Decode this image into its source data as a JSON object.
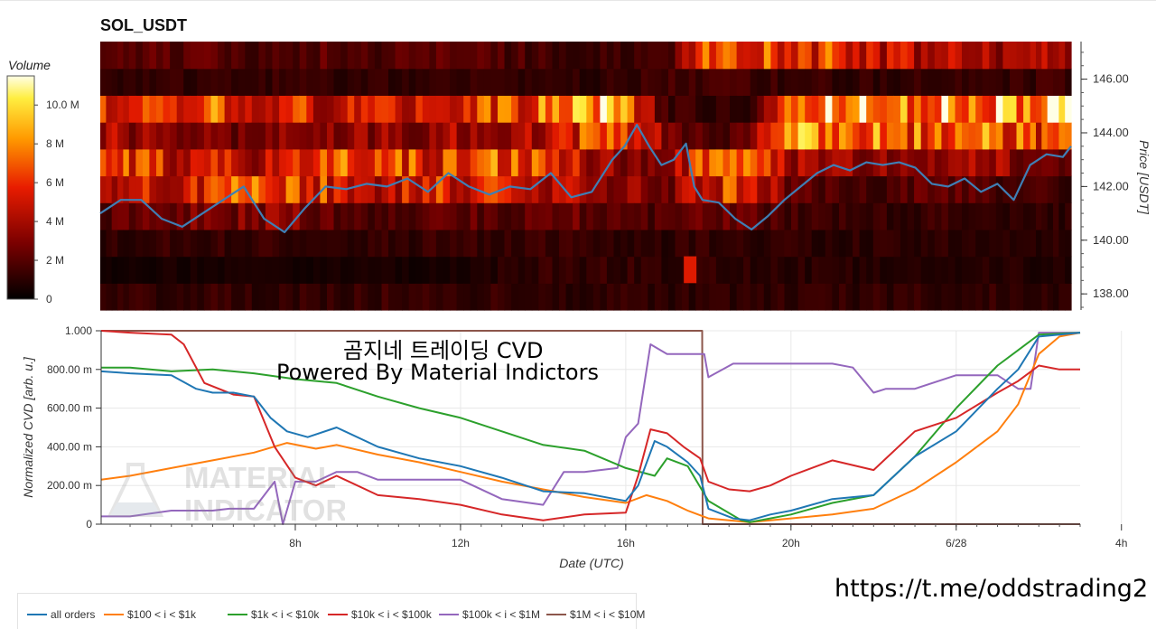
{
  "header": {
    "title": "SOL_USDT"
  },
  "colorbar": {
    "title": "Volume",
    "ticks": [
      "0",
      "2 M",
      "4 M",
      "6 M",
      "8 M",
      "10.0 M"
    ],
    "tick_values": [
      0,
      2,
      4,
      6,
      8,
      10
    ],
    "max": 11.5
  },
  "watermark": {
    "line1": "곰지네 트레이딩 CVD",
    "line2": "Powered By Material Indictors",
    "logo_line1": "MATERIAL",
    "logo_line2": "INDICATORS"
  },
  "footer": {
    "url": "https://t.me/oddstrading2"
  },
  "colors": {
    "all": "#1f77b4",
    "s100": "#ff7f0e",
    "s1k": "#2ca02c",
    "s10k": "#d62728",
    "s100k": "#9467bd",
    "s1m": "#8c564b",
    "price": "#3f7fb5"
  },
  "chart_data": [
    {
      "type": "heatmap",
      "title": "SOL_USDT",
      "ylabel": "Price [USDT]",
      "ylim": [
        137.4,
        147.4
      ],
      "yticks": [
        "138.00",
        "140.00",
        "142.00",
        "144.00",
        "146.00"
      ],
      "ytick_values": [
        138,
        140,
        142,
        144,
        146
      ],
      "x_range_hours": [
        3.3,
        27.0
      ],
      "price_bands_low": [
        137.4,
        138.4,
        139.4,
        140.4,
        141.4,
        142.4,
        143.4,
        144.4,
        145.4,
        146.4
      ],
      "volume_columns_M": [
        {
          "x": 3.3,
          "levels": [
            1.3,
            0.4,
            1.0,
            1.8,
            4.5,
            7.0,
            4.2,
            5.5,
            1.2,
            2.0
          ]
        },
        {
          "x": 4.0,
          "levels": [
            1.2,
            0.5,
            1.1,
            2.2,
            5.0,
            6.0,
            3.5,
            6.0,
            1.1,
            2.0
          ]
        },
        {
          "x": 5.0,
          "levels": [
            1.2,
            0.6,
            1.3,
            3.0,
            5.5,
            5.0,
            3.0,
            5.0,
            1.2,
            2.0
          ]
        },
        {
          "x": 6.0,
          "levels": [
            1.3,
            0.6,
            1.2,
            2.5,
            6.0,
            5.0,
            2.8,
            6.5,
            1.3,
            2.0
          ]
        },
        {
          "x": 7.0,
          "levels": [
            1.1,
            0.6,
            1.3,
            3.2,
            6.5,
            4.0,
            2.5,
            5.0,
            1.2,
            1.9
          ]
        },
        {
          "x": 8.0,
          "levels": [
            1.2,
            0.5,
            1.2,
            3.0,
            6.5,
            5.0,
            3.2,
            5.5,
            1.3,
            2.0
          ]
        },
        {
          "x": 9.0,
          "levels": [
            1.2,
            0.5,
            1.1,
            2.0,
            5.5,
            6.5,
            3.8,
            5.0,
            1.1,
            2.0
          ]
        },
        {
          "x": 10.0,
          "levels": [
            1.3,
            0.6,
            1.2,
            1.8,
            5.0,
            6.0,
            3.5,
            5.5,
            1.2,
            1.8
          ]
        },
        {
          "x": 11.0,
          "levels": [
            1.2,
            0.5,
            1.2,
            1.9,
            5.5,
            6.0,
            3.5,
            6.0,
            1.0,
            1.9
          ]
        },
        {
          "x": 12.0,
          "levels": [
            1.1,
            0.6,
            1.3,
            2.2,
            5.5,
            6.5,
            3.8,
            6.0,
            1.2,
            2.0
          ]
        },
        {
          "x": 13.0,
          "levels": [
            1.2,
            0.9,
            1.3,
            2.0,
            5.0,
            6.5,
            4.0,
            6.5,
            1.1,
            1.9
          ]
        },
        {
          "x": 14.0,
          "levels": [
            1.0,
            1.2,
            1.4,
            2.2,
            5.0,
            6.0,
            3.8,
            7.0,
            1.0,
            1.5
          ]
        },
        {
          "x": 15.0,
          "levels": [
            1.0,
            1.2,
            1.2,
            2.4,
            4.0,
            4.5,
            6.0,
            8.5,
            1.0,
            1.3
          ]
        },
        {
          "x": 16.0,
          "levels": [
            1.1,
            1.2,
            1.1,
            1.8,
            3.5,
            3.0,
            7.5,
            8.5,
            1.2,
            1.3
          ]
        },
        {
          "x": 17.0,
          "levels": [
            1.0,
            1.0,
            1.0,
            2.0,
            2.5,
            2.5,
            3.0,
            1.5,
            1.5,
            1.3
          ]
        },
        {
          "x": 18.0,
          "levels": [
            1.0,
            1.2,
            1.2,
            2.2,
            5.5,
            7.5,
            2.0,
            1.2,
            1.5,
            6.5
          ]
        },
        {
          "x": 19.0,
          "levels": [
            1.0,
            1.1,
            1.1,
            2.4,
            6.0,
            6.5,
            2.2,
            1.1,
            1.4,
            6.5
          ]
        },
        {
          "x": 20.0,
          "levels": [
            1.1,
            1.0,
            1.1,
            1.5,
            2.5,
            4.5,
            7.5,
            7.0,
            1.2,
            6.0
          ]
        },
        {
          "x": 21.0,
          "levels": [
            1.2,
            0.9,
            1.0,
            1.4,
            1.8,
            3.5,
            8.0,
            8.5,
            1.2,
            6.0
          ]
        },
        {
          "x": 22.0,
          "levels": [
            1.1,
            0.9,
            1.0,
            1.3,
            1.7,
            3.5,
            8.0,
            9.0,
            1.1,
            4.5
          ]
        },
        {
          "x": 23.0,
          "levels": [
            1.2,
            0.8,
            1.0,
            1.3,
            2.0,
            3.2,
            7.0,
            8.5,
            1.2,
            4.5
          ]
        },
        {
          "x": 24.0,
          "levels": [
            1.1,
            0.8,
            1.1,
            1.3,
            2.2,
            3.5,
            6.5,
            8.5,
            1.1,
            4.5
          ]
        },
        {
          "x": 25.0,
          "levels": [
            1.2,
            0.9,
            1.1,
            1.2,
            1.6,
            3.8,
            7.0,
            8.0,
            1.2,
            4.0
          ]
        },
        {
          "x": 26.0,
          "levels": [
            1.1,
            0.8,
            1.0,
            1.2,
            1.5,
            3.0,
            6.0,
            9.5,
            1.3,
            4.0
          ]
        },
        {
          "x": 26.7,
          "levels": [
            1.0,
            0.8,
            1.0,
            1.1,
            1.4,
            2.5,
            6.0,
            11.0,
            1.5,
            3.5
          ]
        }
      ],
      "highlight_cell": {
        "x": 17.7,
        "price_low": 138.4,
        "volume_M": 5.5
      },
      "price_series": {
        "name": "Price",
        "x": [
          3.3,
          3.8,
          4.3,
          4.8,
          5.3,
          5.8,
          6.3,
          6.8,
          7.3,
          7.8,
          8.3,
          8.8,
          9.3,
          9.8,
          10.3,
          10.8,
          11.3,
          11.8,
          12.3,
          12.8,
          13.3,
          13.8,
          14.3,
          14.8,
          15.3,
          15.8,
          16.1,
          16.4,
          16.7,
          17.0,
          17.3,
          17.6,
          17.8,
          18.0,
          18.4,
          18.8,
          19.2,
          19.6,
          20.0,
          20.4,
          20.8,
          21.2,
          21.6,
          22.0,
          22.4,
          22.8,
          23.2,
          23.6,
          24.0,
          24.4,
          24.8,
          25.2,
          25.6,
          26.0,
          26.4,
          26.8,
          27.0
        ],
        "y": [
          141.0,
          141.5,
          141.5,
          140.8,
          140.5,
          141.0,
          141.5,
          142.0,
          140.8,
          140.3,
          141.2,
          142.0,
          141.9,
          142.1,
          142.0,
          142.3,
          141.8,
          142.5,
          142.0,
          141.7,
          142.0,
          141.9,
          142.5,
          141.6,
          141.8,
          143.0,
          143.5,
          144.3,
          143.5,
          142.8,
          143.0,
          143.6,
          142.0,
          141.5,
          141.4,
          140.8,
          140.4,
          140.9,
          141.5,
          142.0,
          142.5,
          142.8,
          142.6,
          142.9,
          142.8,
          142.9,
          142.7,
          142.1,
          142.0,
          142.3,
          141.8,
          142.1,
          141.5,
          142.8,
          143.2,
          143.1,
          143.5
        ]
      }
    },
    {
      "type": "line",
      "xlabel": "Date (UTC)",
      "ylabel": "Normalized CVD [arb. u.]",
      "ylim": [
        0,
        1
      ],
      "xlim_hours": [
        3.3,
        27.0
      ],
      "x_ticks": [
        "8h",
        "12h",
        "16h",
        "20h",
        "6/28",
        "4h"
      ],
      "x_tick_hours": [
        8,
        12,
        16,
        20,
        24,
        28
      ],
      "y_ticks": [
        "0",
        "200.00 m",
        "400.00 m",
        "600.00 m",
        "800.00 m",
        "1.000"
      ],
      "y_tick_values": [
        0,
        0.2,
        0.4,
        0.6,
        0.8,
        1.0
      ],
      "series": [
        {
          "key": "all",
          "name": "all orders",
          "x": [
            3.3,
            4.0,
            5.0,
            5.6,
            6.0,
            6.5,
            7.0,
            7.4,
            7.8,
            8.3,
            9.0,
            10.0,
            11.0,
            12.0,
            13.0,
            14.0,
            15.0,
            16.0,
            16.3,
            16.7,
            17.0,
            17.5,
            17.8,
            18.0,
            18.6,
            19.0,
            19.5,
            20.0,
            21.0,
            22.0,
            23.0,
            24.0,
            25.0,
            25.5,
            26.0,
            26.5,
            27.0
          ],
          "y": [
            0.79,
            0.78,
            0.77,
            0.7,
            0.68,
            0.68,
            0.66,
            0.55,
            0.48,
            0.45,
            0.5,
            0.4,
            0.34,
            0.3,
            0.24,
            0.17,
            0.16,
            0.12,
            0.2,
            0.43,
            0.4,
            0.32,
            0.25,
            0.08,
            0.03,
            0.02,
            0.05,
            0.07,
            0.13,
            0.15,
            0.35,
            0.48,
            0.7,
            0.8,
            0.97,
            0.98,
            0.99
          ]
        },
        {
          "key": "s100",
          "name": "$100 < i < $1k",
          "x": [
            3.3,
            4.0,
            5.0,
            6.0,
            7.0,
            7.8,
            8.5,
            9.0,
            10.0,
            11.0,
            12.0,
            13.0,
            14.0,
            15.0,
            16.0,
            16.5,
            17.0,
            17.5,
            18.0,
            19.0,
            20.0,
            21.0,
            22.0,
            23.0,
            24.0,
            25.0,
            25.5,
            26.0,
            26.5,
            27.0
          ],
          "y": [
            0.23,
            0.25,
            0.29,
            0.33,
            0.37,
            0.42,
            0.39,
            0.41,
            0.36,
            0.32,
            0.27,
            0.22,
            0.18,
            0.14,
            0.11,
            0.15,
            0.12,
            0.07,
            0.03,
            0.01,
            0.03,
            0.05,
            0.08,
            0.18,
            0.32,
            0.48,
            0.62,
            0.88,
            0.97,
            0.99
          ]
        },
        {
          "key": "s1k",
          "name": "$1k < i < $10k",
          "x": [
            3.3,
            4.0,
            5.0,
            6.0,
            7.0,
            8.0,
            9.0,
            10.0,
            11.0,
            12.0,
            13.0,
            14.0,
            15.0,
            16.0,
            16.7,
            17.0,
            17.5,
            18.0,
            18.8,
            19.0,
            20.0,
            21.0,
            22.0,
            23.0,
            24.0,
            25.0,
            25.5,
            26.0,
            27.0
          ],
          "y": [
            0.81,
            0.81,
            0.79,
            0.8,
            0.78,
            0.75,
            0.73,
            0.66,
            0.6,
            0.55,
            0.48,
            0.41,
            0.38,
            0.29,
            0.25,
            0.34,
            0.3,
            0.12,
            0.02,
            0.01,
            0.05,
            0.11,
            0.15,
            0.35,
            0.6,
            0.82,
            0.9,
            0.98,
            0.99
          ]
        },
        {
          "key": "s10k",
          "name": "$10k < i < $100k",
          "x": [
            3.3,
            4.0,
            5.0,
            5.3,
            5.8,
            6.5,
            7.0,
            7.5,
            8.0,
            8.5,
            9.0,
            10.0,
            11.0,
            12.0,
            13.0,
            14.0,
            15.0,
            16.0,
            16.3,
            16.6,
            17.0,
            17.4,
            17.8,
            18.0,
            18.5,
            19.0,
            19.5,
            20.0,
            21.0,
            22.0,
            23.0,
            24.0,
            25.0,
            25.5,
            26.0,
            26.5,
            27.0
          ],
          "y": [
            1.0,
            0.99,
            0.98,
            0.93,
            0.73,
            0.67,
            0.66,
            0.4,
            0.24,
            0.2,
            0.25,
            0.15,
            0.13,
            0.1,
            0.05,
            0.02,
            0.05,
            0.06,
            0.25,
            0.49,
            0.47,
            0.4,
            0.34,
            0.22,
            0.18,
            0.17,
            0.2,
            0.25,
            0.33,
            0.28,
            0.48,
            0.55,
            0.68,
            0.74,
            0.82,
            0.8,
            0.8
          ]
        },
        {
          "key": "s100k",
          "name": "$100k < i < $1M",
          "x": [
            3.3,
            4.0,
            5.0,
            6.0,
            6.4,
            7.0,
            7.5,
            7.7,
            8.0,
            8.5,
            9.0,
            9.5,
            10.0,
            11.0,
            12.0,
            13.0,
            14.0,
            14.5,
            15.0,
            15.8,
            16.0,
            16.3,
            16.6,
            17.0,
            17.9,
            18.0,
            18.6,
            19.0,
            20.0,
            21.0,
            21.5,
            22.0,
            22.3,
            23.0,
            24.0,
            25.0,
            25.5,
            25.8,
            26.0,
            26.5,
            27.0
          ],
          "y": [
            0.04,
            0.04,
            0.07,
            0.07,
            0.08,
            0.08,
            0.22,
            0.0,
            0.22,
            0.22,
            0.27,
            0.27,
            0.23,
            0.23,
            0.23,
            0.13,
            0.1,
            0.27,
            0.27,
            0.29,
            0.45,
            0.52,
            0.93,
            0.88,
            0.88,
            0.76,
            0.83,
            0.83,
            0.83,
            0.83,
            0.81,
            0.68,
            0.7,
            0.7,
            0.77,
            0.77,
            0.7,
            0.7,
            0.99,
            0.99,
            0.99
          ]
        },
        {
          "key": "s1m",
          "name": "$1M < i < $10M",
          "x": [
            3.3,
            17.85,
            17.86,
            27.0
          ],
          "y": [
            1.0,
            1.0,
            0.0,
            0.0
          ]
        }
      ]
    }
  ]
}
